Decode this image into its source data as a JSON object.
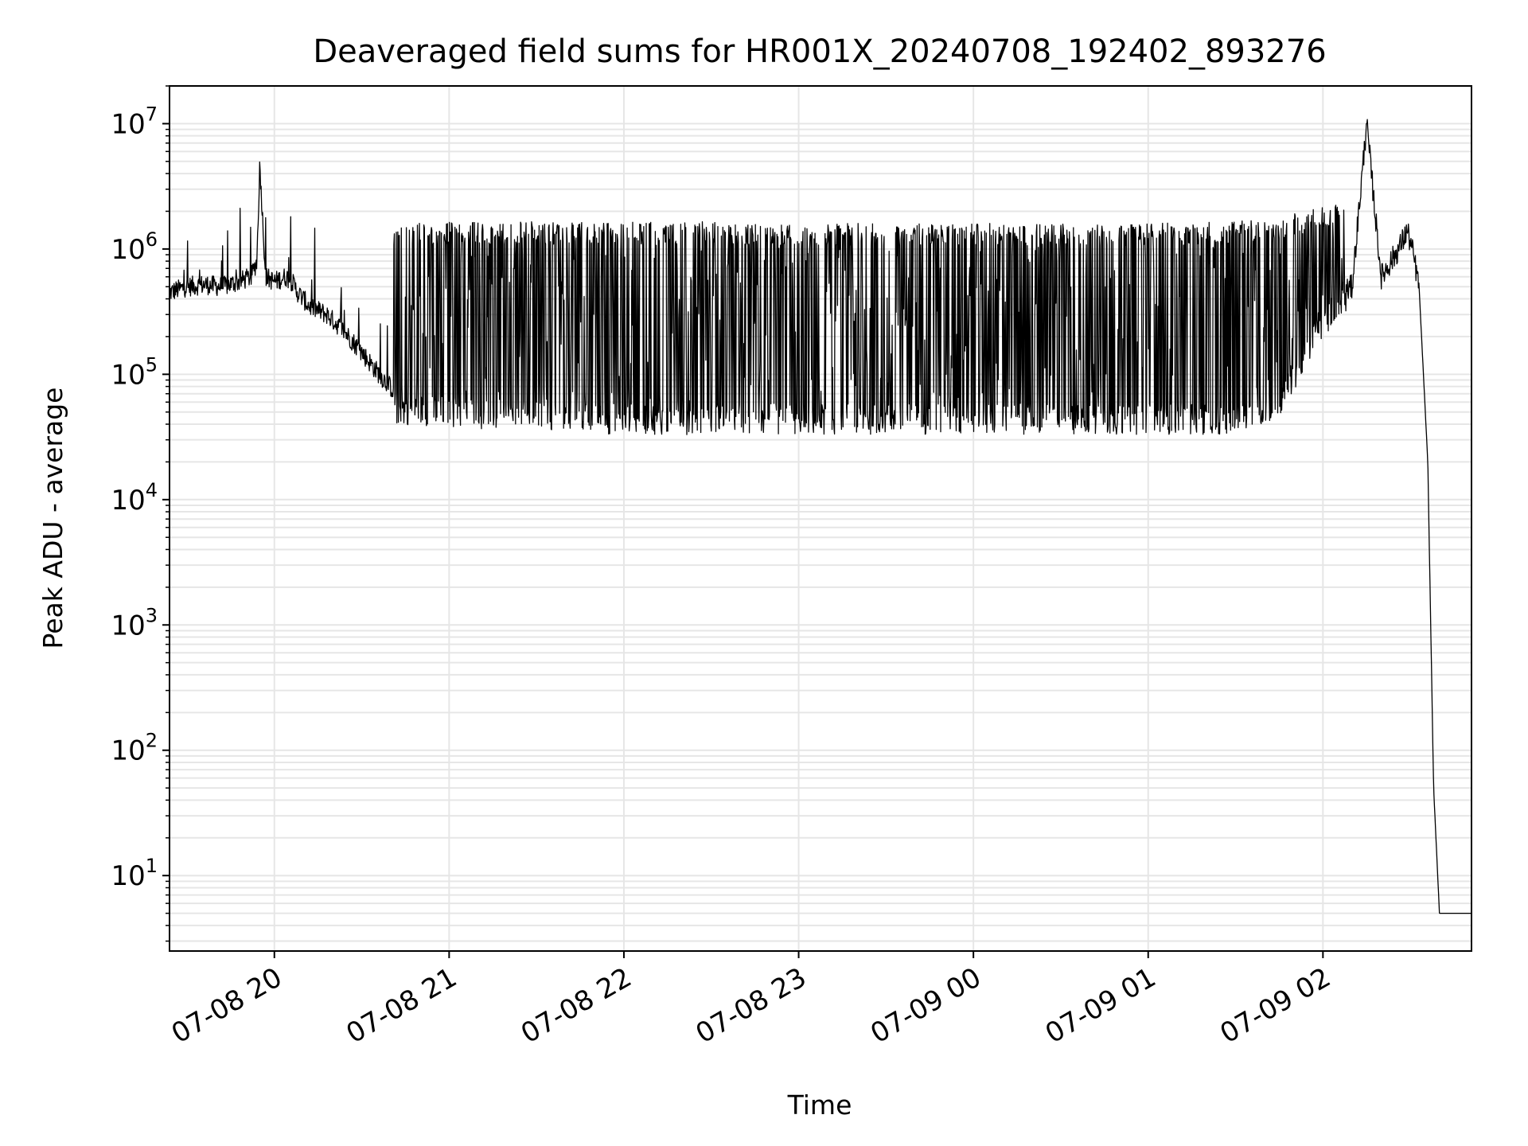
{
  "chart_data": {
    "type": "line",
    "title": "Deaveraged field sums for HR001X_20240708_192402_893276",
    "xlabel": "Time",
    "ylabel": "Peak ADU - average",
    "yscale": "log",
    "ylim": [
      2.5,
      20000000
    ],
    "xlim": [
      "2024-07-08 19:24:00",
      "2024-07-09 02:51:00"
    ],
    "grid": "on (major and minor)",
    "line_color": "#000000",
    "x_ticks": [
      {
        "label": "07-08 20",
        "time": "2024-07-08 20:00"
      },
      {
        "label": "07-08 21",
        "time": "2024-07-08 21:00"
      },
      {
        "label": "07-08 22",
        "time": "2024-07-08 22:00"
      },
      {
        "label": "07-08 23",
        "time": "2024-07-08 23:00"
      },
      {
        "label": "07-09 00",
        "time": "2024-07-09 00:00"
      },
      {
        "label": "07-09 01",
        "time": "2024-07-09 01:00"
      },
      {
        "label": "07-09 02",
        "time": "2024-07-09 02:00"
      }
    ],
    "y_ticks": [
      {
        "base": "10",
        "exp": "1",
        "value": 10
      },
      {
        "base": "10",
        "exp": "2",
        "value": 100
      },
      {
        "base": "10",
        "exp": "3",
        "value": 1000
      },
      {
        "base": "10",
        "exp": "4",
        "value": 10000
      },
      {
        "base": "10",
        "exp": "5",
        "value": 100000
      },
      {
        "base": "10",
        "exp": "6",
        "value": 1000000
      },
      {
        "base": "10",
        "exp": "7",
        "value": 10000000
      }
    ],
    "series": [
      {
        "x": [
          "2024-07-08 19:24",
          "2024-07-08 19:30",
          "2024-07-08 19:36",
          "2024-07-08 19:42",
          "2024-07-08 19:48",
          "2024-07-08 19:52",
          "2024-07-08 19:54",
          "2024-07-08 19:55",
          "2024-07-08 19:57",
          "2024-07-08 20:00",
          "2024-07-08 20:04",
          "2024-07-08 20:06",
          "2024-07-08 20:08",
          "2024-07-08 20:12",
          "2024-07-08 20:18",
          "2024-07-08 20:24",
          "2024-07-08 20:30",
          "2024-07-08 20:36",
          "2024-07-08 20:42",
          "2024-07-08 20:48",
          "2024-07-08 21:00",
          "2024-07-08 21:30",
          "2024-07-08 22:00",
          "2024-07-08 22:30",
          "2024-07-08 23:00",
          "2024-07-08 23:30",
          "2024-07-09 00:00",
          "2024-07-09 00:30",
          "2024-07-09 01:00",
          "2024-07-09 01:30",
          "2024-07-09 01:45",
          "2024-07-09 02:00",
          "2024-07-09 02:10",
          "2024-07-09 02:15",
          "2024-07-09 02:20",
          "2024-07-09 02:26",
          "2024-07-09 02:29",
          "2024-07-09 02:31",
          "2024-07-09 02:33",
          "2024-07-09 02:36",
          "2024-07-09 02:37",
          "2024-07-09 02:38",
          "2024-07-09 02:40",
          "2024-07-09 02:51"
        ],
        "y": [
          450000,
          500000,
          520000,
          500000,
          550000,
          600000,
          800000,
          4800000,
          600000,
          550000,
          600000,
          550000,
          450000,
          350000,
          300000,
          220000,
          150000,
          100000,
          70000,
          55000,
          45000,
          40000,
          40000,
          38000,
          38000,
          38000,
          37000,
          38000,
          36000,
          40000,
          55000,
          350000,
          500000,
          10000000,
          600000,
          1000000,
          1400000,
          900000,
          500000,
          20000,
          1000,
          50,
          5,
          5
        ],
        "envelope_x": [
          "2024-07-08 20:41",
          "2024-07-08 21:00",
          "2024-07-08 21:30",
          "2024-07-08 22:00",
          "2024-07-08 22:30",
          "2024-07-08 23:00",
          "2024-07-08 23:30",
          "2024-07-09 00:00",
          "2024-07-09 00:30",
          "2024-07-09 01:00",
          "2024-07-09 01:30",
          "2024-07-09 01:45",
          "2024-07-09 02:00",
          "2024-07-09 02:08"
        ],
        "envelope_high": [
          1600000,
          1650000,
          1650000,
          1650000,
          1650000,
          1600000,
          1600000,
          1600000,
          1600000,
          1600000,
          1650000,
          1800000,
          2200000,
          2500000
        ],
        "envelope_low": [
          40000,
          38000,
          34000,
          33000,
          33000,
          33000,
          33000,
          33000,
          33000,
          33000,
          33000,
          45000,
          200000,
          300000
        ]
      }
    ]
  }
}
